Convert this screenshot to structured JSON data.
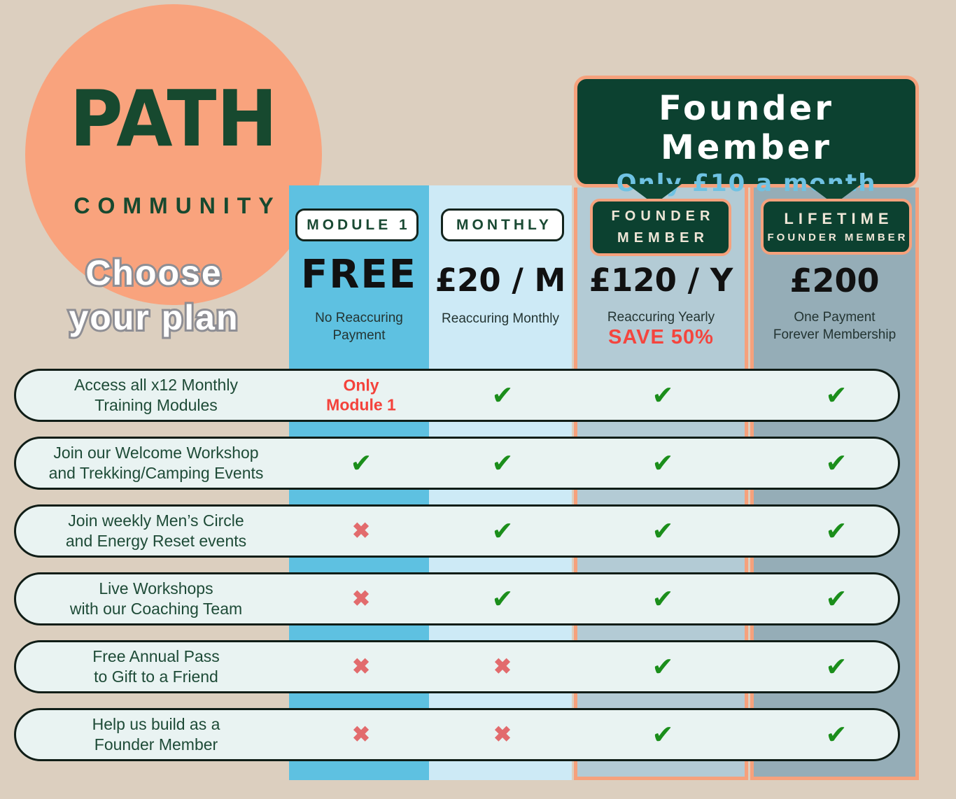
{
  "logo": {
    "title": "PATH",
    "subtitle": "COMMUNITY",
    "tagline": [
      "Choose",
      "your plan"
    ],
    "circle_color": "#F9A37D",
    "text_color": "#17492F"
  },
  "banner": {
    "title": "Founder Member",
    "subtitle": "Only £10 a month",
    "bg_color": "#0C4130",
    "border_color": "#F6A17C",
    "subtitle_color": "#6FC2E3"
  },
  "plans": [
    {
      "name": "MODULE 1",
      "price": "FREE",
      "notes": [
        "No Reaccuring",
        "Payment"
      ],
      "column_color": "#5EC1E1"
    },
    {
      "name": "MONTHLY",
      "price": "£20 / M",
      "notes": [
        "Reaccuring Monthly"
      ],
      "column_color": "#CDEAF6"
    },
    {
      "name_lines": [
        "FOUNDER",
        "MEMBER"
      ],
      "price": "£120 / Y",
      "notes": [
        "Reaccuring Yearly"
      ],
      "highlight": "SAVE 50%",
      "column_color": "#B3CBD5"
    },
    {
      "name_lines": [
        "LIFETIME",
        "FOUNDER MEMBER"
      ],
      "price": "£200",
      "notes": [
        "One Payment",
        "Forever Membership"
      ],
      "column_color": "#95ADB7"
    }
  ],
  "features": [
    {
      "label_lines": [
        "Access all x12 Monthly",
        "Training Modules"
      ],
      "marks": [
        "text",
        "check",
        "check",
        "check"
      ],
      "special_lines": [
        "Only",
        "Module 1"
      ]
    },
    {
      "label_lines": [
        "Join our Welcome Workshop",
        "and Trekking/Camping Events"
      ],
      "marks": [
        "check",
        "check",
        "check",
        "check"
      ]
    },
    {
      "label_lines": [
        "Join weekly Men’s Circle",
        "and Energy Reset events"
      ],
      "marks": [
        "cross",
        "check",
        "check",
        "check"
      ]
    },
    {
      "label_lines": [
        "Live Workshops",
        "with our Coaching Team"
      ],
      "marks": [
        "cross",
        "check",
        "check",
        "check"
      ]
    },
    {
      "label_lines": [
        "Free Annual Pass",
        "to Gift to a Friend"
      ],
      "marks": [
        "cross",
        "cross",
        "check",
        "check"
      ]
    },
    {
      "label_lines": [
        "Help us build as a",
        "Founder Member"
      ],
      "marks": [
        "cross",
        "cross",
        "check",
        "check"
      ]
    }
  ],
  "marks": {
    "check_glyph": "✔",
    "cross_glyph": "✖",
    "check_color": "#1B8E1B",
    "cross_color": "#E26B6D",
    "special_color": "#F4423B"
  }
}
